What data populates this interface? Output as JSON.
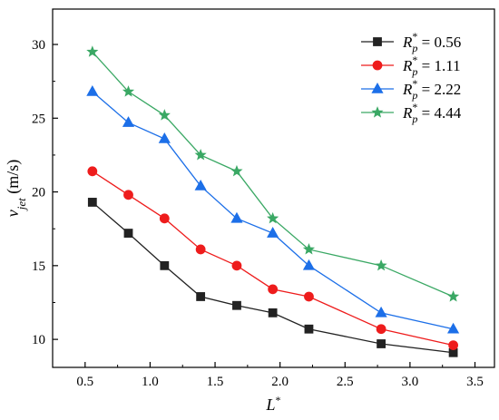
{
  "chart_data": {
    "type": "line",
    "title": "",
    "xlabel": "L",
    "xlabel_sup": "*",
    "ylabel_main": "v",
    "ylabel_sub": "jet",
    "ylabel_units": " (m/s)",
    "xlim": [
      0.25,
      3.65
    ],
    "ylim": [
      8.1,
      32.4
    ],
    "xticks": [
      0.5,
      1.0,
      1.5,
      2.0,
      2.5,
      3.0,
      3.5
    ],
    "xtick_labels": [
      "0.5",
      "1.0",
      "1.5",
      "2.0",
      "2.5",
      "3.0",
      "3.5"
    ],
    "yticks": [
      10,
      15,
      20,
      25,
      30
    ],
    "ytick_labels": [
      "10",
      "15",
      "20",
      "25",
      "30"
    ],
    "grid": false,
    "legend_position": "top-right",
    "x": [
      0.556,
      0.833,
      1.111,
      1.389,
      1.667,
      1.944,
      2.222,
      2.778,
      3.333
    ],
    "series": [
      {
        "name": "R_p* = 0.56",
        "legend_symbol": "R",
        "legend_sub": "p",
        "legend_sup": "*",
        "legend_value": " = 0.56",
        "color": "#222222",
        "marker": "square",
        "values": [
          19.3,
          17.2,
          15.0,
          12.9,
          12.3,
          11.8,
          10.7,
          9.7,
          9.1
        ]
      },
      {
        "name": "R_p* = 1.11",
        "legend_symbol": "R",
        "legend_sub": "p",
        "legend_sup": "*",
        "legend_value": " = 1.11",
        "color": "#ee1c1c",
        "marker": "circle",
        "values": [
          21.4,
          19.8,
          18.2,
          16.1,
          15.0,
          13.4,
          12.9,
          10.7,
          9.6
        ]
      },
      {
        "name": "R_p* = 2.22",
        "legend_symbol": "R",
        "legend_sub": "p",
        "legend_sup": "*",
        "legend_value": " = 2.22",
        "color": "#1c6fe8",
        "marker": "triangle",
        "values": [
          26.8,
          24.7,
          23.6,
          20.4,
          18.2,
          17.2,
          15.0,
          11.8,
          10.7
        ]
      },
      {
        "name": "R_p* = 4.44",
        "legend_symbol": "R",
        "legend_sub": "p",
        "legend_sup": "*",
        "legend_value": " = 4.44",
        "color": "#3aa864",
        "marker": "star",
        "values": [
          29.5,
          26.8,
          25.2,
          22.5,
          21.4,
          18.2,
          16.1,
          15.0,
          12.9
        ]
      }
    ]
  }
}
